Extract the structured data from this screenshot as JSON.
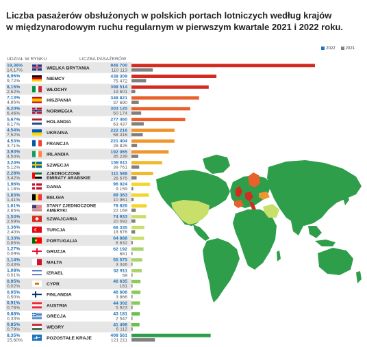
{
  "title_line1": "Liczba pasażerów obsłużonych w polskich portach lotniczych według krajów",
  "title_line2": "w międzynarodowym ruchu regularnym w pierwszym kwartale 2021 i 2022 roku.",
  "col_share": "UDZIAŁ W RYNKU",
  "col_pax": "LICZBA PASAŻERÓW",
  "legend": {
    "y2022": "2022",
    "y2021": "2021"
  },
  "colors": {
    "y2022_legend": "#1e73be",
    "y2021": "#808080",
    "share_2022": "#1e73be",
    "share_2021": "#555555",
    "row_alt": "#e6e6e6",
    "map_green": "#2e9e4b",
    "map_light": "#c8e06a"
  },
  "chart_data": {
    "type": "bar",
    "title": "Liczba pasażerów obsłużonych w polskich portach lotniczych według krajów w międzynarodowym ruchu regularnym w pierwszym kwartale 2021 i 2022 roku.",
    "series": [
      {
        "name": "2022"
      },
      {
        "name": "2021"
      }
    ],
    "rows": [
      {
        "country": "WIELKA BRYTANIA",
        "share_2022": "19,36%",
        "share_2021": "14,17%",
        "pax_2022": "946 700",
        "pax_2021": "110 113",
        "v2022": 946700,
        "v2021": 110113,
        "color": "#d42a20",
        "flag": "uk-flag-icon"
      },
      {
        "country": "NIEMCY",
        "share_2022": "8,96%",
        "share_2021": "9,72%",
        "pax_2022": "438 309",
        "pax_2021": "75 472",
        "v2022": 438309,
        "v2021": 75472,
        "color": "#d42a20",
        "flag": "germany-flag-icon"
      },
      {
        "country": "WŁOCHY",
        "share_2022": "8,15%",
        "share_2021": "2,52%",
        "pax_2022": "398 514",
        "pax_2021": "19 601",
        "v2022": 398514,
        "v2021": 19601,
        "color": "#d42a20",
        "flag": "italy-flag-icon"
      },
      {
        "country": "HISZPANIA",
        "share_2022": "7,13%",
        "share_2021": "4,85%",
        "pax_2022": "348 821",
        "pax_2021": "37 690",
        "v2022": 348821,
        "v2021": 37690,
        "color": "#e8602a",
        "flag": "spain-flag-icon"
      },
      {
        "country": "NORWEGIA",
        "share_2022": "6,20%",
        "share_2021": "6,46%",
        "pax_2022": "303 125",
        "pax_2021": "50 174",
        "v2022": 303125,
        "v2021": 50174,
        "color": "#e8602a",
        "flag": "norway-flag-icon"
      },
      {
        "country": "HOLANDIA",
        "share_2022": "5,67%",
        "share_2021": "8,17%",
        "pax_2022": "277 460",
        "pax_2021": "63 437",
        "v2022": 277460,
        "v2021": 63437,
        "color": "#e8602a",
        "flag": "netherlands-flag-icon"
      },
      {
        "country": "UKRAINA",
        "share_2022": "4,54%",
        "share_2021": "7,52%",
        "pax_2022": "222 216",
        "pax_2021": "58 416",
        "v2022": 222216,
        "v2021": 58416,
        "color": "#f0962e",
        "flag": "ukraine-flag-icon"
      },
      {
        "country": "FRANCJA",
        "share_2022": "4,53%",
        "share_2021": "3,71%",
        "pax_2022": "221 404",
        "pax_2021": "28 825",
        "v2022": 221404,
        "v2021": 28825,
        "color": "#f0962e",
        "flag": "france-flag-icon"
      },
      {
        "country": "IRLANDIA",
        "share_2022": "3,93%",
        "share_2021": "4,54%",
        "pax_2022": "192 065",
        "pax_2021": "35 239",
        "v2022": 192065,
        "v2021": 35239,
        "color": "#f0962e",
        "flag": "ireland-flag-icon"
      },
      {
        "country": "SZWECJA",
        "share_2022": "3,24%",
        "share_2021": "5,12%",
        "pax_2022": "158 611",
        "pax_2021": "39 761",
        "v2022": 158611,
        "v2021": 39761,
        "color": "#f2b830",
        "flag": "sweden-flag-icon"
      },
      {
        "country": "ZJEDNOCZONE EMIRATY ARABSKIE",
        "label1": "ZJEDNOCZONE",
        "label2": "EMIRATY ARABSKIE",
        "share_2022": "2,28%",
        "share_2021": "3,42%",
        "pax_2022": "111 588",
        "pax_2021": "26 575",
        "v2022": 111588,
        "v2021": 26575,
        "color": "#f2b830",
        "flag": "uae-flag-icon"
      },
      {
        "country": "DANIA",
        "share_2022": "1,96%",
        "share_2021": "1,18%",
        "pax_2022": "96 024",
        "pax_2021": "9 159",
        "v2022": 96024,
        "v2021": 9159,
        "color": "#f2d630",
        "flag": "denmark-flag-icon"
      },
      {
        "country": "BELGIA",
        "share_2022": "1,83%",
        "share_2021": "1,41%",
        "pax_2022": "89 363",
        "pax_2021": "10 961",
        "v2022": 89363,
        "v2021": 10961,
        "color": "#f2d630",
        "flag": "belgium-flag-icon"
      },
      {
        "country": "STANY ZJEDNOCZONE AMERYKI",
        "label1": "STANY ZJEDNOCZONE",
        "label2": "AMERYKI",
        "share_2022": "1,61%",
        "share_2021": "2,85%",
        "pax_2022": "78 826",
        "pax_2021": "22 169",
        "v2022": 78826,
        "v2021": 22169,
        "color": "#f2d630",
        "flag": "usa-flag-icon"
      },
      {
        "country": "SZWAJCARIA",
        "share_2022": "1,53%",
        "share_2021": "2,59%",
        "pax_2022": "74 933",
        "pax_2021": "20 092",
        "v2022": 74933,
        "v2021": 20092,
        "color": "#c8e06a",
        "flag": "switzerland-flag-icon"
      },
      {
        "country": "TURCJA",
        "share_2022": "1,36%",
        "share_2021": "2,40%",
        "pax_2022": "66 335",
        "pax_2021": "18 676",
        "v2022": 66335,
        "v2021": 18676,
        "color": "#c8e06a",
        "flag": "turkey-flag-icon"
      },
      {
        "country": "PORTUGALIA",
        "share_2022": "1,33%",
        "share_2021": "0,85%",
        "pax_2022": "64 888",
        "pax_2021": "6 632",
        "v2022": 64888,
        "v2021": 6632,
        "color": "#c8e06a",
        "flag": "portugal-flag-icon"
      },
      {
        "country": "GRUZJA",
        "share_2022": "1,27%",
        "share_2021": "0,09%",
        "pax_2022": "62 192",
        "pax_2021": "681",
        "v2022": 62192,
        "v2021": 681,
        "color": "#a8d46a",
        "flag": "georgia-flag-icon"
      },
      {
        "country": "MALTA",
        "share_2022": "1,14%",
        "share_2021": "0,43%",
        "pax_2022": "55 575",
        "pax_2021": "3 346",
        "v2022": 55575,
        "v2021": 3346,
        "color": "#a8d46a",
        "flag": "malta-flag-icon"
      },
      {
        "country": "IZRAEL",
        "share_2022": "1,08%",
        "share_2021": "0,01%",
        "pax_2022": "52 911",
        "pax_2021": "59",
        "v2022": 52911,
        "v2021": 59,
        "color": "#a8d46a",
        "flag": "israel-flag-icon"
      },
      {
        "country": "CYPR",
        "share_2022": "0,95%",
        "share_2021": "0,02%",
        "pax_2022": "46 635",
        "pax_2021": "181",
        "v2022": 46635,
        "v2021": 181,
        "color": "#8cc85a",
        "flag": "cyprus-flag-icon"
      },
      {
        "country": "FINLANDIA",
        "share_2022": "0,95%",
        "share_2021": "0,50%",
        "pax_2022": "46 606",
        "pax_2021": "3 866",
        "v2022": 46606,
        "v2021": 3866,
        "color": "#8cc85a",
        "flag": "finland-flag-icon"
      },
      {
        "country": "AUSTRIA",
        "share_2022": "0,91%",
        "share_2021": "0,76%",
        "pax_2022": "44 302",
        "pax_2021": "5 923",
        "v2022": 44302,
        "v2021": 5923,
        "color": "#8cc85a",
        "flag": "austria-flag-icon"
      },
      {
        "country": "GRECJA",
        "share_2022": "0,88%",
        "share_2021": "0,33%",
        "pax_2022": "43 181",
        "pax_2021": "2 547",
        "v2022": 43181,
        "v2021": 2547,
        "color": "#6cbf4e",
        "flag": "greece-flag-icon"
      },
      {
        "country": "WĘGRY",
        "share_2022": "0,85%",
        "share_2021": "0,79%",
        "pax_2022": "41 498",
        "pax_2021": "6 112",
        "v2022": 41498,
        "v2021": 6112,
        "color": "#6cbf4e",
        "flag": "hungary-flag-icon"
      },
      {
        "country": "POZOSTAŁE KRAJE",
        "share_2022": "8,35%",
        "share_2021": "15,60%",
        "pax_2022": "408 561",
        "pax_2021": "121 211",
        "v2022": 408561,
        "v2021": 121211,
        "color": "#2e9e4b",
        "flag": "plane-icon"
      }
    ]
  }
}
